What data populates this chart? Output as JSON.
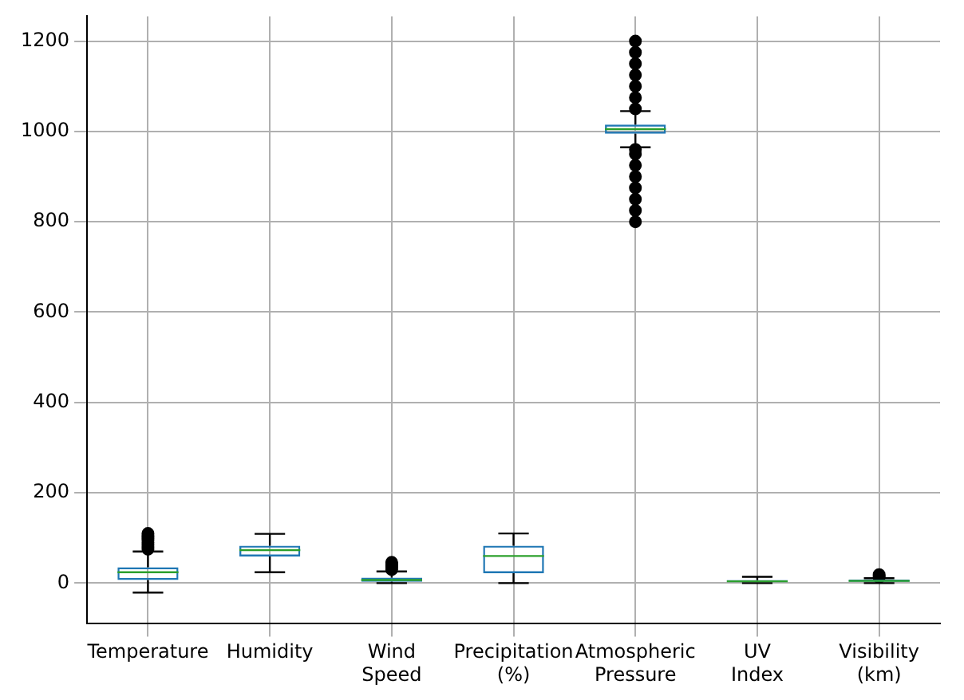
{
  "chart_data": {
    "type": "box",
    "categories": [
      "Temperature",
      "Humidity",
      "Wind Speed",
      "Precipitation (%)",
      "Atmospheric Pressure",
      "UV Index",
      "Visibility (km)"
    ],
    "series": [
      {
        "color": "#1f77b4",
        "boxes": [
          {
            "low": -21,
            "q1": 7,
            "median": 24,
            "q3": 35,
            "high": 70,
            "outliers": [
              75,
              80,
              85,
              90,
              95,
              100,
              105,
              110
            ]
          },
          {
            "low": 24,
            "q1": 59,
            "median": 73,
            "q3": 83,
            "high": 109
          },
          {
            "low": 0,
            "q1": 3,
            "median": 7,
            "q3": 12,
            "high": 26,
            "outliers": [
              30,
              34,
              38,
              42,
              46
            ]
          },
          {
            "low": 0,
            "q1": 22,
            "median": 60,
            "q3": 83,
            "high": 110
          },
          {
            "low": 965,
            "q1": 995,
            "median": 1005,
            "q3": 1015,
            "high": 1045,
            "outliers": [
              800,
              825,
              850,
              875,
              900,
              925,
              950,
              960,
              1050,
              1075,
              1100,
              1125,
              1150,
              1175,
              1200
            ]
          },
          {
            "low": 0,
            "q1": 2,
            "median": 4,
            "q3": 7,
            "high": 14
          },
          {
            "low": 0,
            "q1": 3,
            "median": 5,
            "q3": 8,
            "high": 11,
            "outliers": [
              13,
              16,
              19
            ]
          }
        ]
      }
    ],
    "ylim": [
      -90,
      1255
    ],
    "yticks": [
      0,
      200,
      400,
      600,
      800,
      1000,
      1200
    ],
    "grid": true,
    "legend": false,
    "marker": "circle"
  }
}
